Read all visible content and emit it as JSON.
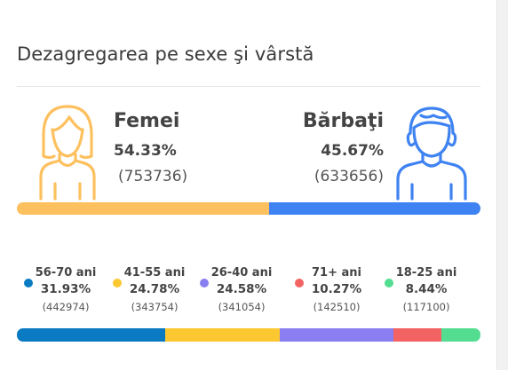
{
  "title": "Dezagregarea pe sexe şi vârstă",
  "colors": {
    "female": "#fdc05f",
    "male": "#3f83f2",
    "age_56_70": "#0a7bc2",
    "age_41_55": "#fcc831",
    "age_26_40": "#8a7ff0",
    "age_71_plus": "#f36363",
    "age_18_25": "#54dd91"
  },
  "icons": {
    "female": "woman-outline-icon",
    "male": "man-outline-icon"
  },
  "gender": {
    "female": {
      "label": "Femei",
      "pct": "54.33%",
      "count": "(753736)"
    },
    "male": {
      "label": "Bărbaţi",
      "pct": "45.67%",
      "count": "(633656)"
    }
  },
  "ages": [
    {
      "label": "56-70 ani",
      "pct": "31.93%",
      "count": "(442974)"
    },
    {
      "label": "41-55 ani",
      "pct": "24.78%",
      "count": "(343754)"
    },
    {
      "label": "26-40 ani",
      "pct": "24.58%",
      "count": "(341054)"
    },
    {
      "label": "71+ ani",
      "pct": "10.27%",
      "count": "(142510)"
    },
    {
      "label": "18-25 ani",
      "pct": "8.44%",
      "count": "(117100)"
    }
  ],
  "chart_data": [
    {
      "type": "bar",
      "orientation": "stacked-horizontal",
      "categories": [
        "Femei",
        "Bărbaţi"
      ],
      "values": [
        54.33,
        45.67
      ],
      "counts": [
        753736,
        633656
      ],
      "title": "Dezagregarea pe sexe şi vârstă"
    },
    {
      "type": "bar",
      "orientation": "stacked-horizontal",
      "categories": [
        "56-70 ani",
        "41-55 ani",
        "26-40 ani",
        "71+ ani",
        "18-25 ani"
      ],
      "values": [
        31.93,
        24.78,
        24.58,
        10.27,
        8.44
      ],
      "counts": [
        442974,
        343754,
        341054,
        142510,
        117100
      ]
    }
  ]
}
